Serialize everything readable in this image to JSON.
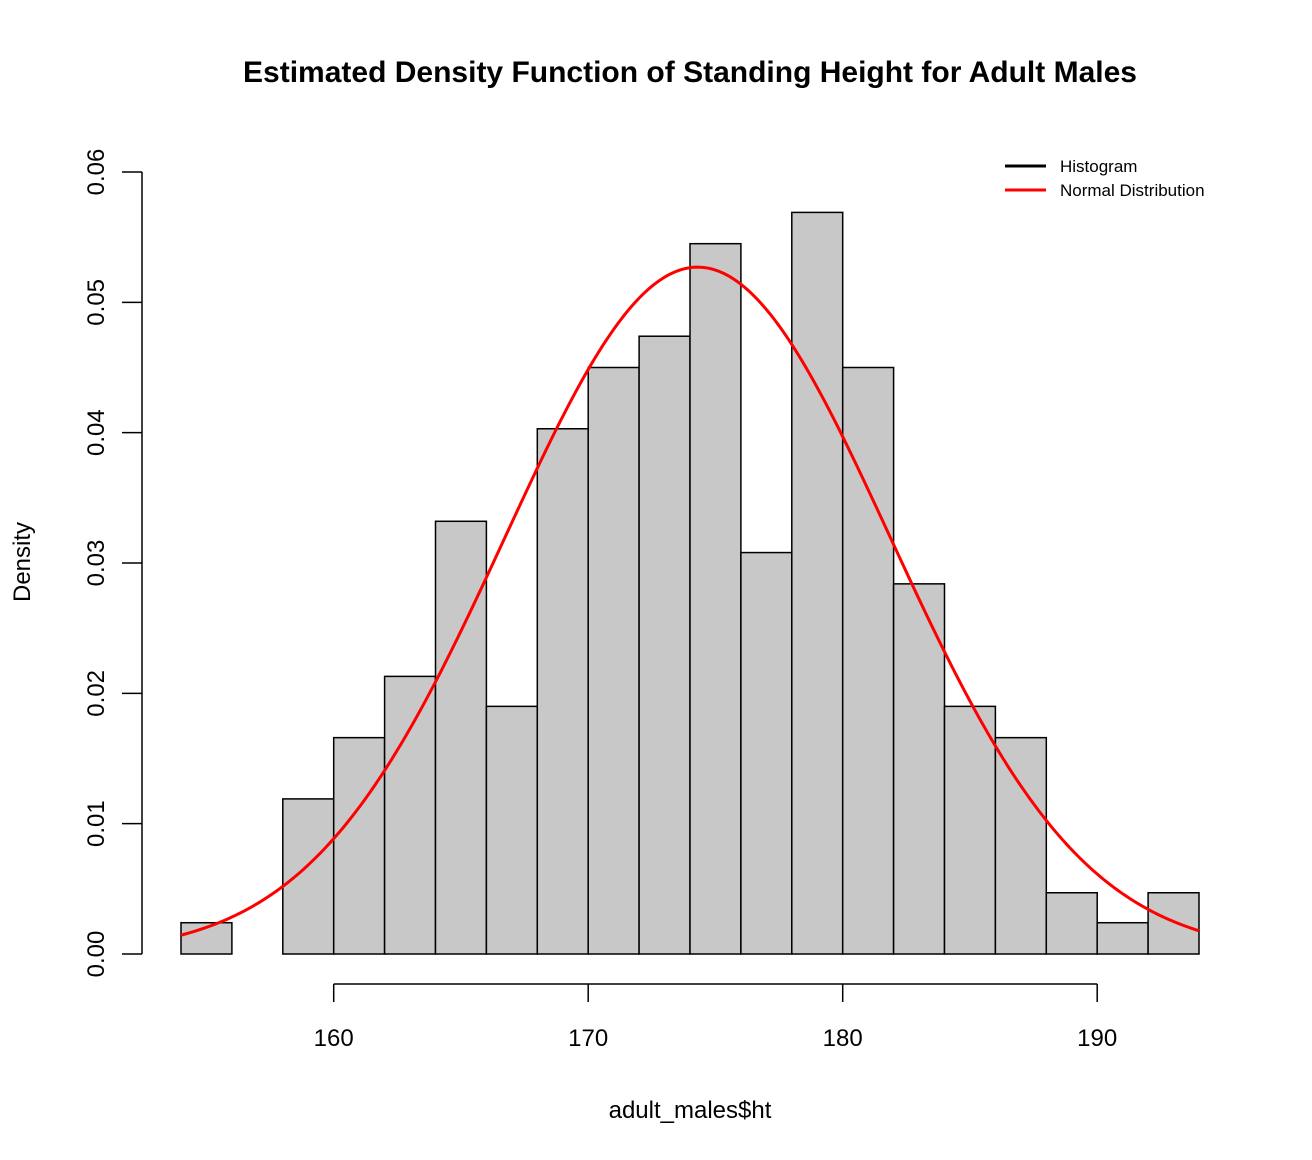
{
  "chart_data": {
    "type": "bar",
    "title": "Estimated Density Function of Standing Height for Adult Males",
    "xlabel": "adult_males$ht",
    "ylabel": "Density",
    "bin_edges": [
      154,
      156,
      158,
      160,
      162,
      164,
      166,
      168,
      170,
      172,
      174,
      176,
      178,
      180,
      182,
      184,
      186,
      188,
      190,
      192,
      194
    ],
    "values": [
      0.0024,
      0,
      0.0119,
      0.0166,
      0.0213,
      0.0332,
      0.019,
      0.0403,
      0.045,
      0.0474,
      0.0545,
      0.0308,
      0.0569,
      0.045,
      0.0284,
      0.019,
      0.0166,
      0.0047,
      0.0024,
      0.0047
    ],
    "xlim": [
      154,
      194
    ],
    "ylim": [
      0,
      0.06
    ],
    "x_ticks": [
      160,
      170,
      180,
      190
    ],
    "y_ticks": [
      0.0,
      0.01,
      0.02,
      0.03,
      0.04,
      0.05,
      0.06
    ],
    "y_tick_labels": [
      "0.00",
      "0.01",
      "0.02",
      "0.03",
      "0.04",
      "0.05",
      "0.06"
    ],
    "bar_fill": "#c8c8c8",
    "bar_stroke": "#000000",
    "curve": {
      "type": "normal_density",
      "mean": 174.3,
      "sd": 7.57,
      "color": "#ff0000"
    },
    "legend": {
      "position": "top-right",
      "entries": [
        {
          "label": "Histogram",
          "color": "#000000"
        },
        {
          "label": "Normal Distribution",
          "color": "#ff0000"
        }
      ]
    },
    "grid": false
  }
}
